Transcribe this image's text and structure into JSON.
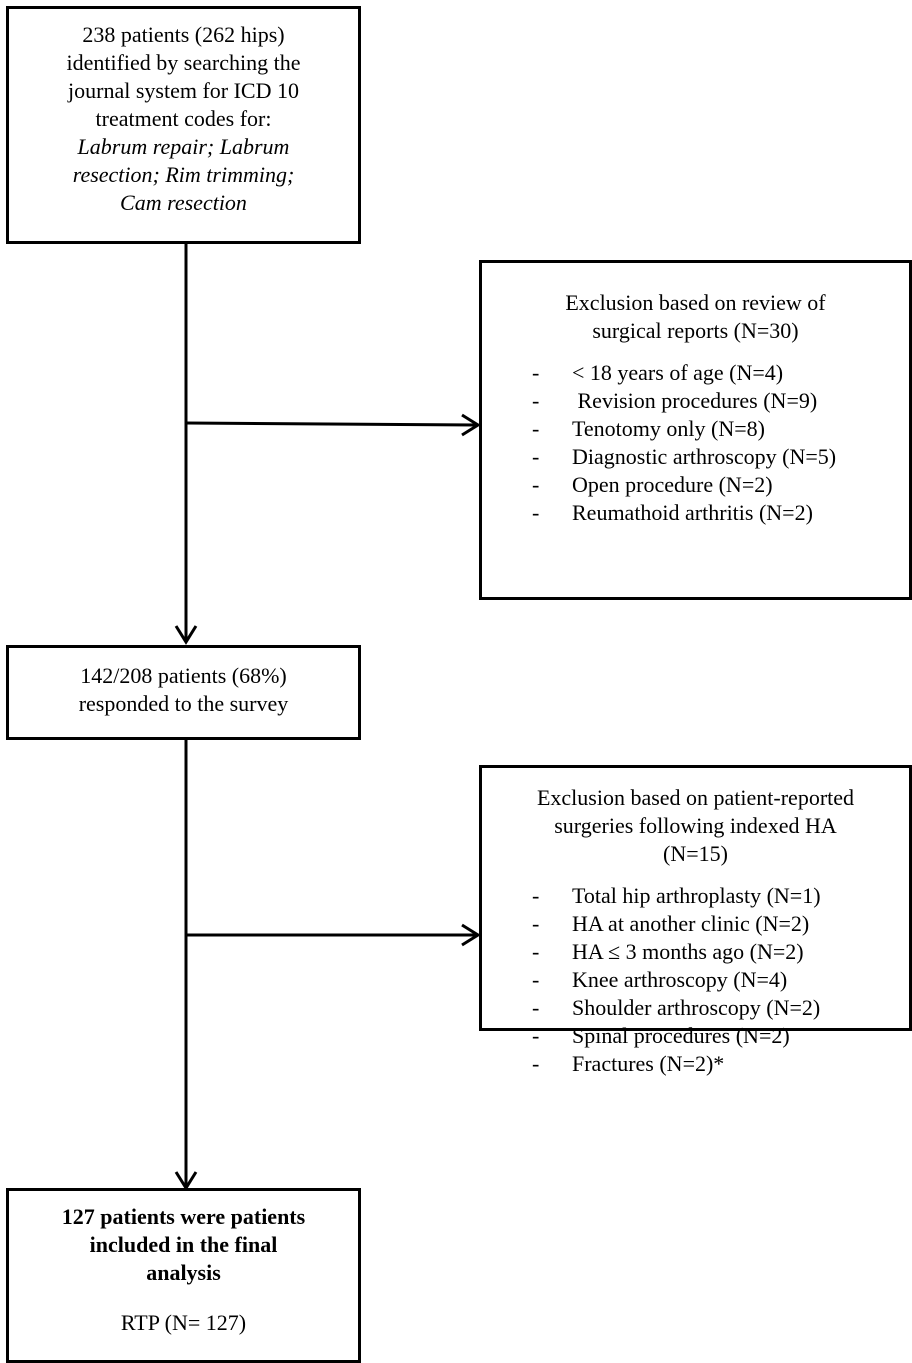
{
  "box1": {
    "lines": [
      "238 patients (262 hips)",
      "identified by searching the",
      "journal system for ICD 10",
      "treatment codes for:"
    ],
    "italic_lines": [
      "Labrum repair; Labrum",
      "resection; Rim trimming;",
      "Cam resection"
    ]
  },
  "exclusion1": {
    "title_lines": [
      "Exclusion based on review of",
      "surgical reports (N=30)"
    ],
    "bullet": "-",
    "items": [
      "< 18 years of age (N=4)",
      " Revision procedures (N=9)",
      "Tenotomy only (N=8)",
      "Diagnostic arthroscopy (N=5)",
      "Open procedure (N=2)",
      "Reumathoid arthritis (N=2)"
    ]
  },
  "box2": {
    "lines": [
      "142/208 patients (68%)",
      "responded to the survey"
    ]
  },
  "exclusion2": {
    "title_lines": [
      "Exclusion based on patient-reported",
      "surgeries following indexed HA",
      "(N=15)"
    ],
    "bullet": "-",
    "items": [
      "Total hip arthroplasty (N=1)",
      "HA at another clinic (N=2)",
      "HA ≤ 3 months ago (N=2)",
      "Knee arthroscopy (N=4)",
      "Shoulder arthroscopy (N=2)",
      "Spinal procedures (N=2)",
      "Fractures (N=2)*"
    ]
  },
  "box3": {
    "bold_lines": [
      "127 patients were patients",
      "included in the final",
      "analysis"
    ],
    "rtp": "RTP (N= 127)"
  }
}
